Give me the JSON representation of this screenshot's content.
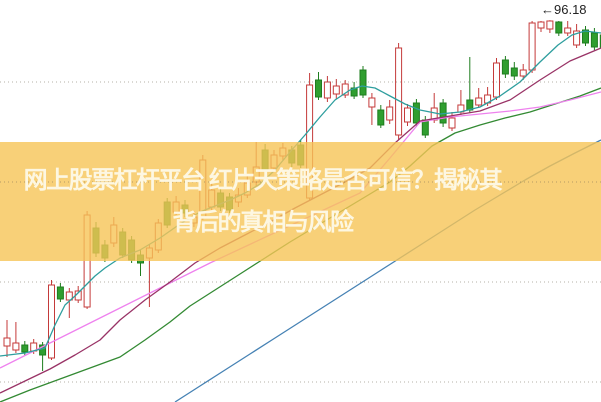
{
  "page": {
    "background": "#ffffff",
    "description": "candlestick stock chart with headline banner overlay"
  },
  "banner": {
    "line1": "网上股票杠杆平台 红片天策略是否可信？揭秘其",
    "line2": "背后的真相与风险",
    "background_color": "rgba(246,196,86,0.8)",
    "text_color": "#fdf7e2"
  },
  "chart_data": {
    "type": "candlestick",
    "title": "",
    "xlabel": "",
    "ylabel": "",
    "x_axis": {
      "labels_visible": false
    },
    "y_axis": {
      "labels_visible": false,
      "gridline_prices": [
        90,
        80,
        70,
        60
      ],
      "grid_visible": true,
      "grid_color": "rgba(110,100,80,0.5)",
      "ylim": [
        58.0,
        98.2
      ]
    },
    "annotation": {
      "arrow": "←",
      "value": "96.18",
      "points_to_high_of_bar": 61
    },
    "style": {
      "up_color": "#c43a3a",
      "up_fill": "#ffffff",
      "down_color": "#2f9e2f",
      "down_border": "#1e7d1e"
    },
    "overlay": {
      "top": 142,
      "height": 119,
      "color": "rgba(246,196,86,0.8)"
    },
    "candles": [
      [
        63.6,
        66.2,
        62.5,
        64.4
      ],
      [
        63.2,
        66.0,
        62.9,
        63.9
      ],
      [
        63.7,
        64.1,
        62.7,
        63.0
      ],
      [
        63.1,
        64.3,
        62.8,
        63.9
      ],
      [
        63.7,
        64.0,
        61.1,
        62.7
      ],
      [
        62.4,
        70.2,
        62.2,
        69.7
      ],
      [
        69.5,
        69.9,
        68.0,
        68.3
      ],
      [
        68.2,
        69.4,
        66.4,
        69.0
      ],
      [
        68.2,
        69.6,
        67.9,
        69.1
      ],
      [
        67.5,
        77.1,
        67.3,
        76.7
      ],
      [
        75.4,
        76.0,
        72.5,
        72.9
      ],
      [
        73.7,
        74.2,
        72.0,
        72.4
      ],
      [
        73.9,
        76.5,
        73.5,
        75.7
      ],
      [
        75.0,
        75.4,
        72.4,
        72.7
      ],
      [
        74.2,
        74.6,
        71.9,
        72.2
      ],
      [
        72.7,
        73.2,
        70.6,
        71.9
      ],
      [
        72.4,
        73.8,
        67.5,
        73.4
      ],
      [
        73.2,
        76.3,
        72.9,
        75.9
      ],
      [
        78.0,
        78.4,
        75.4,
        75.7
      ],
      [
        77.0,
        78.6,
        76.7,
        78.0
      ],
      [
        77.7,
        78.2,
        76.5,
        76.9
      ],
      [
        75.9,
        77.1,
        75.5,
        76.5
      ],
      [
        76.5,
        82.7,
        76.2,
        82.2
      ],
      [
        77.5,
        79.9,
        77.2,
        79.2
      ],
      [
        78.9,
        79.3,
        77.1,
        77.5
      ],
      [
        78.5,
        78.9,
        76.9,
        77.2
      ],
      [
        78.0,
        79.4,
        77.5,
        78.7
      ],
      [
        78.7,
        80.6,
        78.4,
        79.9
      ],
      [
        80.0,
        84.0,
        79.6,
        81.5
      ],
      [
        83.2,
        83.8,
        80.8,
        81.2
      ],
      [
        81.4,
        83.2,
        81.0,
        82.7
      ],
      [
        82.6,
        83.9,
        82.2,
        83.4
      ],
      [
        83.2,
        83.6,
        81.5,
        81.9
      ],
      [
        83.7,
        84.2,
        81.4,
        81.7
      ],
      [
        78.4,
        90.9,
        78.2,
        89.7
      ],
      [
        90.2,
        91.0,
        88.2,
        88.5
      ],
      [
        88.4,
        90.6,
        88.0,
        90.0
      ],
      [
        88.8,
        90.3,
        88.3,
        89.6
      ],
      [
        88.7,
        90.2,
        88.4,
        89.8
      ],
      [
        89.4,
        90.0,
        88.3,
        88.6
      ],
      [
        91.2,
        91.6,
        88.4,
        88.7
      ],
      [
        87.5,
        88.9,
        85.7,
        88.4
      ],
      [
        87.2,
        87.7,
        85.4,
        85.7
      ],
      [
        86.2,
        88.2,
        85.8,
        87.5
      ],
      [
        84.7,
        93.9,
        84.2,
        93.4
      ],
      [
        86.0,
        87.8,
        85.6,
        87.4
      ],
      [
        87.9,
        88.3,
        85.5,
        85.9
      ],
      [
        86.2,
        86.6,
        84.4,
        84.7
      ],
      [
        86.2,
        88.9,
        85.9,
        87.4
      ],
      [
        87.9,
        88.3,
        85.5,
        85.9
      ],
      [
        85.4,
        87.0,
        85.1,
        86.4
      ],
      [
        87.0,
        89.2,
        86.7,
        87.7
      ],
      [
        88.2,
        92.5,
        86.9,
        87.2
      ],
      [
        87.7,
        89.4,
        87.4,
        88.4
      ],
      [
        87.9,
        89.5,
        87.6,
        88.7
      ],
      [
        88.5,
        92.4,
        88.2,
        91.9
      ],
      [
        92.2,
        92.6,
        90.4,
        90.8
      ],
      [
        91.4,
        92.0,
        90.2,
        90.6
      ],
      [
        90.6,
        91.8,
        90.2,
        91.2
      ],
      [
        91.2,
        96.1,
        90.9,
        95.9
      ],
      [
        95.4,
        96.1,
        95.0,
        96.0
      ],
      [
        95.3,
        96.18,
        94.9,
        96.1
      ],
      [
        96.0,
        96.1,
        94.6,
        94.9
      ],
      [
        94.9,
        96.1,
        94.6,
        95.4
      ],
      [
        93.7,
        95.8,
        93.4,
        95.1
      ],
      [
        95.2,
        95.6,
        93.6,
        93.9
      ],
      [
        94.9,
        95.4,
        93.2,
        93.5
      ],
      [
        94.7,
        95.2,
        93.0,
        93.4
      ]
    ],
    "ma_lines": [
      {
        "name": "MA60",
        "color": "#4682b4",
        "points": [
          [
            175,
            58.0
          ],
          [
            200,
            59.6
          ],
          [
            225,
            61.2
          ],
          [
            250,
            62.8
          ],
          [
            275,
            64.4
          ],
          [
            300,
            66.0
          ],
          [
            325,
            67.6
          ],
          [
            350,
            69.2
          ],
          [
            375,
            70.8
          ],
          [
            400,
            72.4
          ],
          [
            425,
            74.0
          ],
          [
            450,
            75.6
          ],
          [
            475,
            77.2
          ],
          [
            500,
            78.7
          ],
          [
            525,
            80.2
          ],
          [
            550,
            81.6
          ],
          [
            575,
            82.9
          ],
          [
            601,
            84.2
          ]
        ]
      },
      {
        "name": "MA30",
        "color": "#338a33",
        "points": [
          [
            0,
            58.0
          ],
          [
            30,
            59.2
          ],
          [
            60,
            60.3
          ],
          [
            90,
            61.4
          ],
          [
            120,
            62.5
          ],
          [
            145,
            64.2
          ],
          [
            170,
            66.0
          ],
          [
            190,
            67.6
          ],
          [
            215,
            69.2
          ],
          [
            240,
            70.8
          ],
          [
            265,
            72.4
          ],
          [
            290,
            74.0
          ],
          [
            315,
            75.5
          ],
          [
            340,
            77.0
          ],
          [
            365,
            78.5
          ],
          [
            390,
            80.0
          ],
          [
            410,
            81.6
          ],
          [
            432,
            83.6
          ],
          [
            455,
            84.9
          ],
          [
            480,
            85.7
          ],
          [
            505,
            86.4
          ],
          [
            530,
            87.0
          ],
          [
            555,
            87.8
          ],
          [
            580,
            88.6
          ],
          [
            601,
            89.4
          ]
        ]
      },
      {
        "name": "MA20",
        "color": "#ee82ee",
        "points": [
          [
            0,
            61.4
          ],
          [
            30,
            62.9
          ],
          [
            60,
            64.4
          ],
          [
            90,
            65.9
          ],
          [
            120,
            67.4
          ],
          [
            150,
            68.9
          ],
          [
            180,
            70.4
          ],
          [
            210,
            71.9
          ],
          [
            240,
            73.3
          ],
          [
            270,
            74.7
          ],
          [
            300,
            76.1
          ],
          [
            330,
            77.5
          ],
          [
            360,
            78.9
          ],
          [
            390,
            82.4
          ],
          [
            420,
            86.0
          ],
          [
            450,
            86.5
          ],
          [
            480,
            86.8
          ],
          [
            510,
            87.1
          ],
          [
            540,
            87.5
          ],
          [
            570,
            88.2
          ],
          [
            601,
            89.0
          ]
        ]
      },
      {
        "name": "MA10",
        "color": "#993366",
        "points": [
          [
            0,
            58.9
          ],
          [
            25,
            60.1
          ],
          [
            50,
            61.3
          ],
          [
            75,
            62.7
          ],
          [
            100,
            64.2
          ],
          [
            120,
            66.2
          ],
          [
            145,
            68.2
          ],
          [
            170,
            70.0
          ],
          [
            195,
            71.9
          ],
          [
            220,
            73.4
          ],
          [
            245,
            74.7
          ],
          [
            270,
            76.0
          ],
          [
            295,
            77.4
          ],
          [
            320,
            78.7
          ],
          [
            345,
            80.0
          ],
          [
            370,
            81.4
          ],
          [
            395,
            83.9
          ],
          [
            420,
            86.1
          ],
          [
            450,
            86.6
          ],
          [
            480,
            87.1
          ],
          [
            510,
            88.2
          ],
          [
            540,
            90.2
          ],
          [
            570,
            92.1
          ],
          [
            601,
            93.4
          ]
        ]
      },
      {
        "name": "MA5",
        "color": "#2e9e9e",
        "points": [
          [
            0,
            62.6
          ],
          [
            25,
            62.9
          ],
          [
            45,
            63.4
          ],
          [
            55,
            65.7
          ],
          [
            65,
            67.7
          ],
          [
            75,
            68.6
          ],
          [
            85,
            69.6
          ],
          [
            95,
            70.6
          ],
          [
            105,
            71.4
          ],
          [
            120,
            72.4
          ],
          [
            140,
            73.2
          ],
          [
            160,
            74.4
          ],
          [
            180,
            75.8
          ],
          [
            200,
            77.0
          ],
          [
            215,
            77.6
          ],
          [
            230,
            78.2
          ],
          [
            245,
            78.9
          ],
          [
            260,
            79.8
          ],
          [
            275,
            81.2
          ],
          [
            290,
            83.0
          ],
          [
            305,
            84.7
          ],
          [
            320,
            86.5
          ],
          [
            335,
            88.2
          ],
          [
            350,
            89.2
          ],
          [
            362,
            89.6
          ],
          [
            375,
            89.4
          ],
          [
            390,
            88.6
          ],
          [
            405,
            87.8
          ],
          [
            420,
            87.2
          ],
          [
            440,
            86.8
          ],
          [
            460,
            87.0
          ],
          [
            480,
            87.5
          ],
          [
            500,
            88.6
          ],
          [
            520,
            90.0
          ],
          [
            540,
            92.0
          ],
          [
            558,
            93.7
          ],
          [
            572,
            94.7
          ],
          [
            585,
            95.1
          ],
          [
            601,
            94.9
          ]
        ]
      }
    ]
  }
}
